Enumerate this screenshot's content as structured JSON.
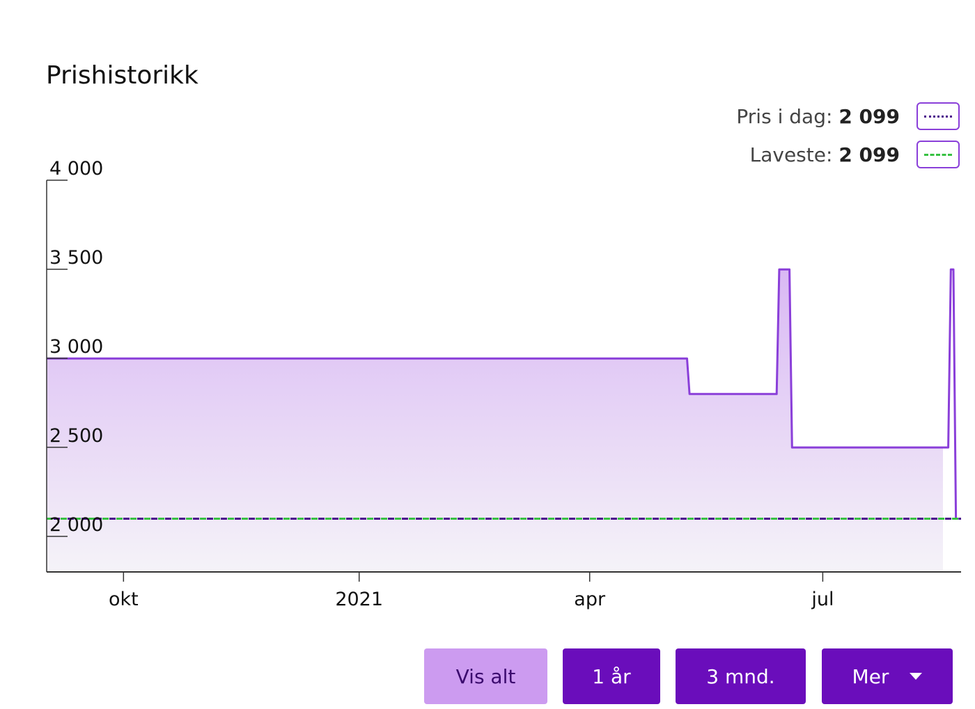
{
  "title": "Prishistorikk",
  "legend": {
    "today_label": "Pris i dag:",
    "today_value": "2 099",
    "lowest_label": "Laveste:",
    "lowest_value": "2 099"
  },
  "colors": {
    "price_line": "#8a3fd9",
    "fill_top": "#d9b8f4",
    "fill_bottom": "#f5f3f8",
    "today_line": "#4b0b8c",
    "lowest_line": "#37c142",
    "button": "#6a0dbb",
    "button_active": "#cc9bf0"
  },
  "buttons": [
    {
      "label": "Vis alt",
      "active": true
    },
    {
      "label": "1 år",
      "active": false
    },
    {
      "label": "3 mnd.",
      "active": false
    },
    {
      "label": "Mer",
      "active": false,
      "icon": "caret-down-icon"
    }
  ],
  "chart_data": {
    "type": "area",
    "step": true,
    "x_type": "date",
    "xlim": [
      "2020-09-01",
      "2021-08-24"
    ],
    "ylim": [
      1800,
      4000
    ],
    "yticks": [
      {
        "value": 2000,
        "label": "2 000"
      },
      {
        "value": 2500,
        "label": "2 500"
      },
      {
        "value": 3000,
        "label": "3 000"
      },
      {
        "value": 3500,
        "label": "3 500"
      },
      {
        "value": 4000,
        "label": "4 000"
      }
    ],
    "xticks": [
      {
        "value": "2020-10-01",
        "label": "okt"
      },
      {
        "value": "2021-01-01",
        "label": "2021"
      },
      {
        "value": "2021-04-01",
        "label": "apr"
      },
      {
        "value": "2021-07-01",
        "label": "jul"
      }
    ],
    "series": [
      {
        "points": [
          [
            "2020-09-01",
            2999
          ],
          [
            "2021-05-09",
            2999
          ],
          [
            "2021-05-10",
            2799
          ],
          [
            "2021-06-13",
            2799
          ],
          [
            "2021-06-14",
            3499
          ],
          [
            "2021-06-18",
            3499
          ],
          [
            "2021-06-19",
            2499
          ],
          [
            "2021-08-19",
            2499
          ],
          [
            "2021-08-20",
            3499
          ],
          [
            "2021-08-21",
            3499
          ],
          [
            "2021-08-22",
            2099
          ],
          [
            "2021-08-24",
            2099
          ]
        ]
      }
    ],
    "reference_lines": [
      {
        "value": 2099,
        "kind": "today",
        "style": "dotted"
      },
      {
        "value": 2099,
        "kind": "lowest",
        "style": "dashed"
      }
    ],
    "legend_position": "top-right",
    "grid": false
  }
}
